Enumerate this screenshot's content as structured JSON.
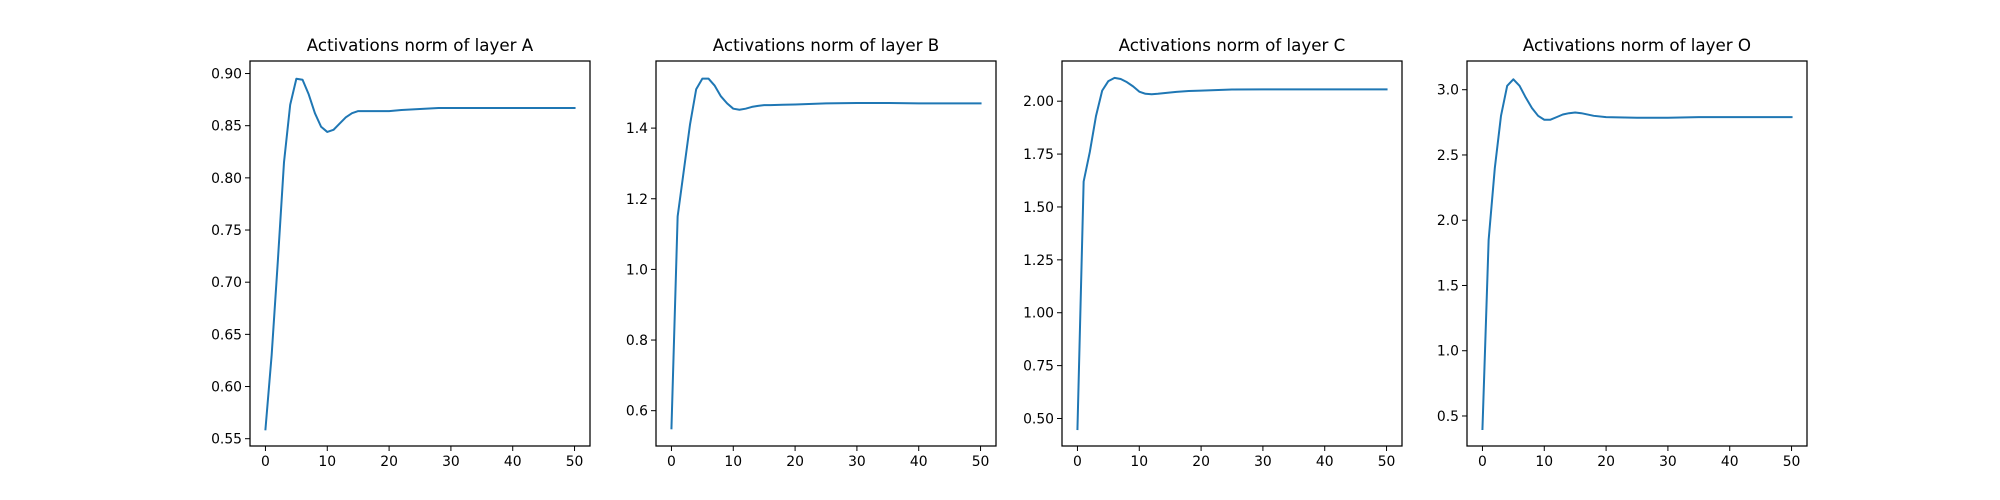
{
  "chart_data": [
    {
      "type": "line",
      "title": "Activations norm of layer A",
      "xlabel": "",
      "ylabel": "",
      "xlim": [
        -2.5,
        52.5
      ],
      "ylim": [
        0.543,
        0.912
      ],
      "xticks": [
        0,
        10,
        20,
        30,
        40,
        50
      ],
      "yticks": [
        0.55,
        0.6,
        0.65,
        0.7,
        0.75,
        0.8,
        0.85,
        0.9
      ],
      "ytick_labels": [
        "0.55",
        "0.60",
        "0.65",
        "0.70",
        "0.75",
        "0.80",
        "0.85",
        "0.90"
      ],
      "grid": false,
      "series": [
        {
          "color": "#1f77b4",
          "x": [
            0,
            1,
            2,
            3,
            4,
            5,
            6,
            7,
            8,
            9,
            10,
            11,
            12,
            13,
            14,
            15,
            16,
            18,
            20,
            22,
            25,
            28,
            30,
            35,
            40,
            45,
            50
          ],
          "y": [
            0.559,
            0.63,
            0.72,
            0.815,
            0.87,
            0.895,
            0.894,
            0.88,
            0.862,
            0.849,
            0.844,
            0.846,
            0.852,
            0.858,
            0.862,
            0.864,
            0.864,
            0.864,
            0.864,
            0.865,
            0.866,
            0.867,
            0.867,
            0.867,
            0.867,
            0.867,
            0.867
          ]
        }
      ]
    },
    {
      "type": "line",
      "title": "Activations norm of layer B",
      "xlabel": "",
      "ylabel": "",
      "xlim": [
        -2.5,
        52.5
      ],
      "ylim": [
        0.5,
        1.59
      ],
      "xticks": [
        0,
        10,
        20,
        30,
        40,
        50
      ],
      "yticks": [
        0.6,
        0.8,
        1.0,
        1.2,
        1.4
      ],
      "ytick_labels": [
        "0.6",
        "0.8",
        "1.0",
        "1.2",
        "1.4"
      ],
      "grid": false,
      "series": [
        {
          "color": "#1f77b4",
          "x": [
            0,
            1,
            2,
            3,
            4,
            5,
            6,
            7,
            8,
            9,
            10,
            11,
            12,
            13,
            14,
            15,
            16,
            18,
            20,
            25,
            30,
            35,
            40,
            45,
            50
          ],
          "y": [
            0.55,
            1.15,
            1.28,
            1.41,
            1.51,
            1.54,
            1.54,
            1.52,
            1.49,
            1.47,
            1.455,
            1.452,
            1.455,
            1.46,
            1.463,
            1.465,
            1.465,
            1.466,
            1.467,
            1.47,
            1.471,
            1.471,
            1.47,
            1.47,
            1.47
          ]
        }
      ]
    },
    {
      "type": "line",
      "title": "Activations norm of layer C",
      "xlabel": "",
      "ylabel": "",
      "xlim": [
        -2.5,
        52.5
      ],
      "ylim": [
        0.37,
        2.19
      ],
      "xticks": [
        0,
        10,
        20,
        30,
        40,
        50
      ],
      "yticks": [
        0.5,
        0.75,
        1.0,
        1.25,
        1.5,
        1.75,
        2.0
      ],
      "ytick_labels": [
        "0.50",
        "0.75",
        "1.00",
        "1.25",
        "1.50",
        "1.75",
        "2.00"
      ],
      "grid": false,
      "series": [
        {
          "color": "#1f77b4",
          "x": [
            0,
            1,
            2,
            3,
            4,
            5,
            6,
            7,
            8,
            9,
            10,
            11,
            12,
            13,
            14,
            15,
            16,
            18,
            20,
            25,
            30,
            35,
            40,
            45,
            50
          ],
          "y": [
            0.45,
            1.62,
            1.76,
            1.93,
            2.05,
            2.095,
            2.11,
            2.105,
            2.09,
            2.07,
            2.045,
            2.035,
            2.033,
            2.035,
            2.038,
            2.041,
            2.044,
            2.048,
            2.05,
            2.055,
            2.056,
            2.056,
            2.056,
            2.056,
            2.056
          ]
        }
      ]
    },
    {
      "type": "line",
      "title": "Activations norm of layer O",
      "xlabel": "",
      "ylabel": "",
      "xlim": [
        -2.5,
        52.5
      ],
      "ylim": [
        0.27,
        3.22
      ],
      "xticks": [
        0,
        10,
        20,
        30,
        40,
        50
      ],
      "yticks": [
        0.5,
        1.0,
        1.5,
        2.0,
        2.5,
        3.0
      ],
      "ytick_labels": [
        "0.5",
        "1.0",
        "1.5",
        "2.0",
        "2.5",
        "3.0"
      ],
      "grid": false,
      "series": [
        {
          "color": "#1f77b4",
          "x": [
            0,
            1,
            2,
            3,
            4,
            5,
            6,
            7,
            8,
            9,
            10,
            11,
            12,
            13,
            14,
            15,
            16,
            18,
            20,
            25,
            30,
            35,
            40,
            45,
            50
          ],
          "y": [
            0.4,
            1.85,
            2.4,
            2.8,
            3.03,
            3.08,
            3.03,
            2.94,
            2.86,
            2.8,
            2.77,
            2.77,
            2.79,
            2.81,
            2.82,
            2.825,
            2.82,
            2.8,
            2.79,
            2.785,
            2.785,
            2.79,
            2.79,
            2.79,
            2.79
          ]
        }
      ]
    }
  ]
}
